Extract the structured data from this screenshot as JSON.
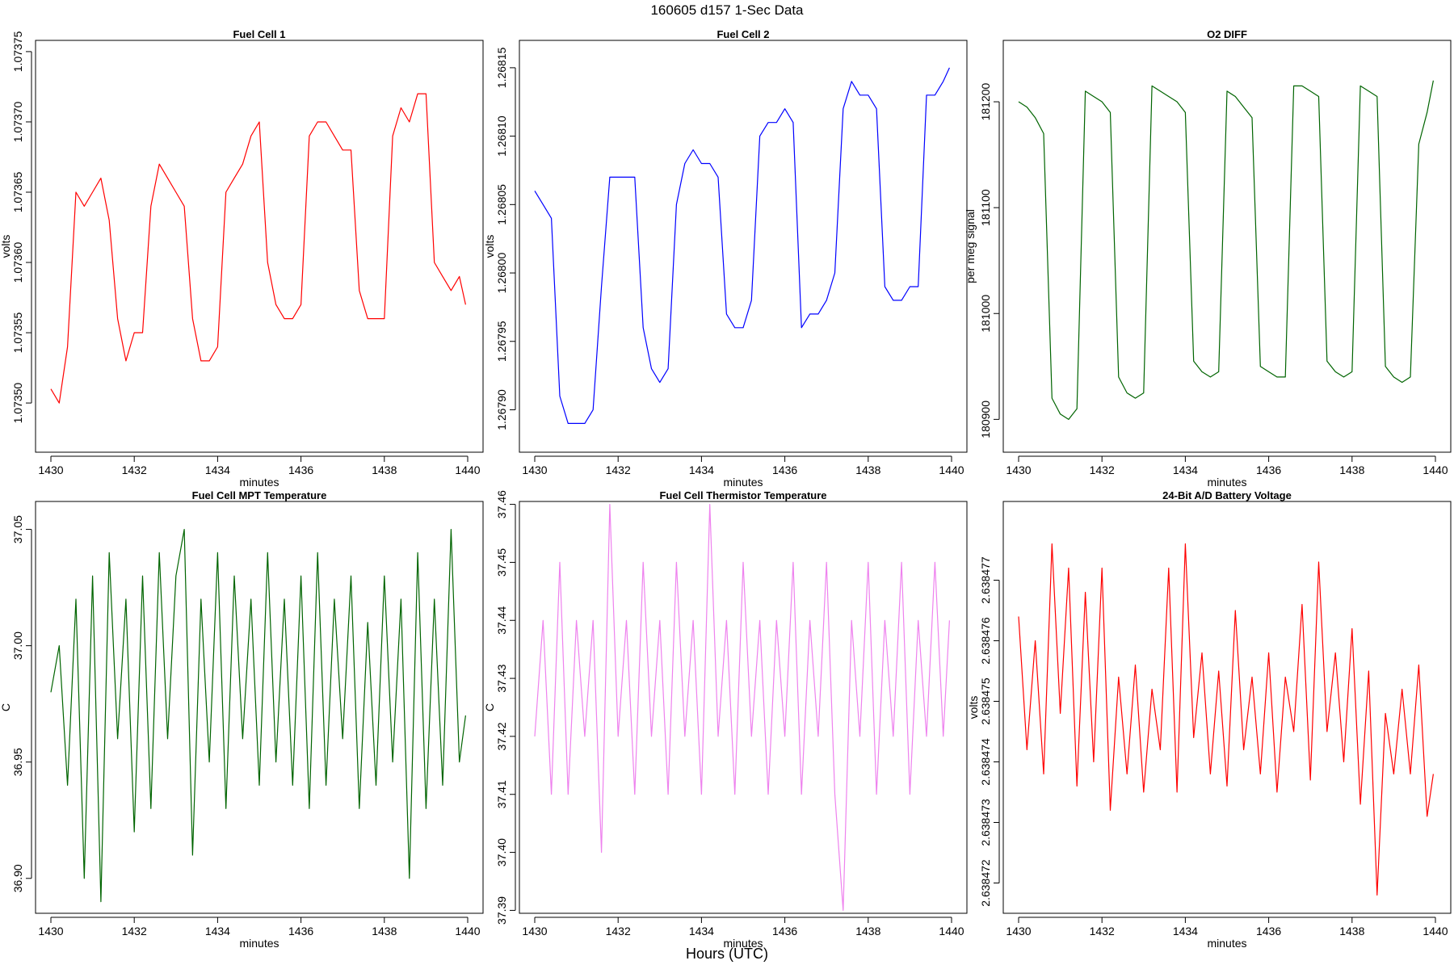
{
  "page": {
    "title": "160605   d157   1-Sec Data",
    "footer": "Hours (UTC)"
  },
  "chart_data": [
    {
      "type": "line",
      "title": "Fuel Cell 1",
      "xlabel": "minutes",
      "ylabel": "volts",
      "color": "#ff0000",
      "xlim": [
        1430,
        1440
      ],
      "ylim": [
        1.073465,
        1.073758
      ],
      "x_ticks": [
        1430,
        1432,
        1434,
        1436,
        1438,
        1440
      ],
      "x_tick_labels": [
        "1430",
        "1432",
        "1434",
        "1436",
        "1438",
        "1440"
      ],
      "y_ticks": [
        1.0735,
        1.07355,
        1.0736,
        1.07365,
        1.0737,
        1.07375
      ],
      "y_tick_labels": [
        "1.07350",
        "1.07355",
        "1.07360",
        "1.07365",
        "1.07370",
        "1.07375"
      ],
      "series": [
        {
          "x": [
            1430.0,
            1430.2,
            1430.4,
            1430.6,
            1430.8,
            1431.0,
            1431.2,
            1431.4,
            1431.6,
            1431.8,
            1432.0,
            1432.2,
            1432.4,
            1432.6,
            1432.8,
            1433.0,
            1433.2,
            1433.4,
            1433.6,
            1433.8,
            1434.0,
            1434.2,
            1434.4,
            1434.6,
            1434.8,
            1435.0,
            1435.2,
            1435.4,
            1435.6,
            1435.8,
            1436.0,
            1436.2,
            1436.4,
            1436.6,
            1436.8,
            1437.0,
            1437.2,
            1437.4,
            1437.6,
            1437.8,
            1438.0,
            1438.2,
            1438.4,
            1438.6,
            1438.8,
            1439.0,
            1439.2,
            1439.4,
            1439.6,
            1439.8,
            1439.95
          ],
          "values": [
            1.07351,
            1.0735,
            1.07354,
            1.07365,
            1.07364,
            1.07365,
            1.07366,
            1.07363,
            1.07356,
            1.07353,
            1.07355,
            1.07355,
            1.07364,
            1.07367,
            1.07366,
            1.07365,
            1.07364,
            1.07356,
            1.07353,
            1.07353,
            1.07354,
            1.07365,
            1.07366,
            1.07367,
            1.07369,
            1.0737,
            1.0736,
            1.07357,
            1.07356,
            1.07356,
            1.07357,
            1.07369,
            1.0737,
            1.0737,
            1.07369,
            1.07368,
            1.07368,
            1.07358,
            1.07356,
            1.07356,
            1.07356,
            1.07369,
            1.07371,
            1.0737,
            1.07372,
            1.07372,
            1.0736,
            1.07359,
            1.07358,
            1.07359,
            1.07357
          ]
        }
      ]
    },
    {
      "type": "line",
      "title": "Fuel Cell 2",
      "xlabel": "minutes",
      "ylabel": "volts",
      "color": "#0000ff",
      "xlim": [
        1430,
        1440
      ],
      "ylim": [
        1.267869,
        1.26817
      ],
      "x_ticks": [
        1430,
        1432,
        1434,
        1436,
        1438,
        1440
      ],
      "x_tick_labels": [
        "1430",
        "1432",
        "1434",
        "1436",
        "1438",
        "1440"
      ],
      "y_ticks": [
        1.2679,
        1.26795,
        1.268,
        1.26805,
        1.2681,
        1.26815
      ],
      "y_tick_labels": [
        "1.26790",
        "1.26795",
        "1.26800",
        "1.26805",
        "1.26810",
        "1.26815"
      ],
      "series": [
        {
          "x": [
            1430.0,
            1430.2,
            1430.4,
            1430.6,
            1430.8,
            1431.0,
            1431.2,
            1431.4,
            1431.6,
            1431.8,
            1432.0,
            1432.2,
            1432.4,
            1432.6,
            1432.8,
            1433.0,
            1433.2,
            1433.4,
            1433.6,
            1433.8,
            1434.0,
            1434.2,
            1434.4,
            1434.6,
            1434.8,
            1435.0,
            1435.2,
            1435.4,
            1435.6,
            1435.8,
            1436.0,
            1436.2,
            1436.4,
            1436.6,
            1436.8,
            1437.0,
            1437.2,
            1437.4,
            1437.6,
            1437.8,
            1438.0,
            1438.2,
            1438.4,
            1438.6,
            1438.8,
            1439.0,
            1439.2,
            1439.4,
            1439.6,
            1439.8,
            1439.95
          ],
          "values": [
            1.26806,
            1.26805,
            1.26804,
            1.26791,
            1.26789,
            1.26789,
            1.26789,
            1.2679,
            1.26799,
            1.26807,
            1.26807,
            1.26807,
            1.26807,
            1.26796,
            1.26793,
            1.26792,
            1.26793,
            1.26805,
            1.26808,
            1.26809,
            1.26808,
            1.26808,
            1.26807,
            1.26797,
            1.26796,
            1.26796,
            1.26798,
            1.2681,
            1.26811,
            1.26811,
            1.26812,
            1.26811,
            1.26796,
            1.26797,
            1.26797,
            1.26798,
            1.268,
            1.26812,
            1.26814,
            1.26813,
            1.26813,
            1.26812,
            1.26799,
            1.26798,
            1.26798,
            1.26799,
            1.26799,
            1.26813,
            1.26813,
            1.26814,
            1.26815
          ]
        }
      ]
    },
    {
      "type": "line",
      "title": "O2 DIFF",
      "xlabel": "minutes",
      "ylabel": "per meg signal",
      "color": "#006400",
      "xlim": [
        1430,
        1440
      ],
      "ylim": [
        180869,
        181258
      ],
      "x_ticks": [
        1430,
        1432,
        1434,
        1436,
        1438,
        1440
      ],
      "x_tick_labels": [
        "1430",
        "1432",
        "1434",
        "1436",
        "1438",
        "1440"
      ],
      "y_ticks": [
        180900,
        181000,
        181100,
        181200
      ],
      "y_tick_labels": [
        "180900",
        "181000",
        "181100",
        "181200"
      ],
      "series": [
        {
          "x": [
            1430.0,
            1430.2,
            1430.4,
            1430.6,
            1430.8,
            1431.0,
            1431.2,
            1431.4,
            1431.6,
            1431.8,
            1432.0,
            1432.2,
            1432.4,
            1432.6,
            1432.8,
            1433.0,
            1433.2,
            1433.4,
            1433.6,
            1433.8,
            1434.0,
            1434.2,
            1434.4,
            1434.6,
            1434.8,
            1435.0,
            1435.2,
            1435.4,
            1435.6,
            1435.8,
            1436.0,
            1436.2,
            1436.4,
            1436.6,
            1436.8,
            1437.0,
            1437.2,
            1437.4,
            1437.6,
            1437.8,
            1438.0,
            1438.2,
            1438.4,
            1438.6,
            1438.8,
            1439.0,
            1439.2,
            1439.4,
            1439.6,
            1439.8,
            1439.95
          ],
          "values": [
            181200,
            181195,
            181185,
            181170,
            180920,
            180905,
            180900,
            180910,
            181210,
            181205,
            181200,
            181190,
            180940,
            180925,
            180920,
            180925,
            181215,
            181210,
            181205,
            181200,
            181190,
            180955,
            180945,
            180940,
            180945,
            181210,
            181205,
            181195,
            181185,
            180950,
            180945,
            180940,
            180940,
            181215,
            181215,
            181210,
            181205,
            180955,
            180945,
            180940,
            180945,
            181215,
            181210,
            181205,
            180950,
            180940,
            180935,
            180940,
            181160,
            181190,
            181220
          ]
        }
      ]
    },
    {
      "type": "line",
      "title": "Fuel Cell MPT Temperature",
      "xlabel": "minutes",
      "ylabel": "C",
      "color": "#006400",
      "xlim": [
        1430,
        1440
      ],
      "ylim": [
        36.885,
        37.062
      ],
      "x_ticks": [
        1430,
        1432,
        1434,
        1436,
        1438,
        1440
      ],
      "x_tick_labels": [
        "1430",
        "1432",
        "1434",
        "1436",
        "1438",
        "1440"
      ],
      "y_ticks": [
        36.9,
        36.95,
        37.0,
        37.05
      ],
      "y_tick_labels": [
        "36.90",
        "36.95",
        "37.00",
        "37.05"
      ],
      "series": [
        {
          "x": [
            1430.0,
            1430.2,
            1430.4,
            1430.6,
            1430.8,
            1431.0,
            1431.2,
            1431.4,
            1431.6,
            1431.8,
            1432.0,
            1432.2,
            1432.4,
            1432.6,
            1432.8,
            1433.0,
            1433.2,
            1433.4,
            1433.6,
            1433.8,
            1434.0,
            1434.2,
            1434.4,
            1434.6,
            1434.8,
            1435.0,
            1435.2,
            1435.4,
            1435.6,
            1435.8,
            1436.0,
            1436.2,
            1436.4,
            1436.6,
            1436.8,
            1437.0,
            1437.2,
            1437.4,
            1437.6,
            1437.8,
            1438.0,
            1438.2,
            1438.4,
            1438.6,
            1438.8,
            1439.0,
            1439.2,
            1439.4,
            1439.6,
            1439.8,
            1439.95
          ],
          "values": [
            36.98,
            37.0,
            36.94,
            37.02,
            36.9,
            37.03,
            36.89,
            37.04,
            36.96,
            37.02,
            36.92,
            37.03,
            36.93,
            37.04,
            36.96,
            37.03,
            37.05,
            36.91,
            37.02,
            36.95,
            37.04,
            36.93,
            37.03,
            36.96,
            37.02,
            36.94,
            37.04,
            36.95,
            37.02,
            36.94,
            37.03,
            36.93,
            37.04,
            36.94,
            37.02,
            36.96,
            37.03,
            36.93,
            37.01,
            36.94,
            37.03,
            36.95,
            37.02,
            36.9,
            37.04,
            36.93,
            37.02,
            36.94,
            37.05,
            36.95,
            36.97
          ]
        }
      ]
    },
    {
      "type": "line",
      "title": "Fuel Cell Thermistor Temperature",
      "xlabel": "minutes",
      "ylabel": "C",
      "color": "#ee82ee",
      "xlim": [
        1430,
        1440
      ],
      "ylim": [
        37.3895,
        37.4605
      ],
      "x_ticks": [
        1430,
        1432,
        1434,
        1436,
        1438,
        1440
      ],
      "x_tick_labels": [
        "1430",
        "1432",
        "1434",
        "1436",
        "1438",
        "1440"
      ],
      "y_ticks": [
        37.39,
        37.4,
        37.41,
        37.42,
        37.43,
        37.44,
        37.45,
        37.46
      ],
      "y_tick_labels": [
        "37.39",
        "37.40",
        "37.41",
        "37.42",
        "37.43",
        "37.44",
        "37.45",
        "37.46"
      ],
      "series": [
        {
          "x": [
            1430.0,
            1430.2,
            1430.4,
            1430.6,
            1430.8,
            1431.0,
            1431.2,
            1431.4,
            1431.6,
            1431.8,
            1432.0,
            1432.2,
            1432.4,
            1432.6,
            1432.8,
            1433.0,
            1433.2,
            1433.4,
            1433.6,
            1433.8,
            1434.0,
            1434.2,
            1434.4,
            1434.6,
            1434.8,
            1435.0,
            1435.2,
            1435.4,
            1435.6,
            1435.8,
            1436.0,
            1436.2,
            1436.4,
            1436.6,
            1436.8,
            1437.0,
            1437.2,
            1437.4,
            1437.6,
            1437.8,
            1438.0,
            1438.2,
            1438.4,
            1438.6,
            1438.8,
            1439.0,
            1439.2,
            1439.4,
            1439.6,
            1439.8,
            1439.95
          ],
          "values": [
            37.42,
            37.44,
            37.41,
            37.45,
            37.41,
            37.44,
            37.42,
            37.44,
            37.4,
            37.46,
            37.42,
            37.44,
            37.41,
            37.45,
            37.42,
            37.44,
            37.41,
            37.45,
            37.42,
            37.44,
            37.41,
            37.46,
            37.42,
            37.44,
            37.41,
            37.45,
            37.42,
            37.44,
            37.41,
            37.44,
            37.42,
            37.45,
            37.41,
            37.44,
            37.42,
            37.45,
            37.41,
            37.39,
            37.44,
            37.42,
            37.45,
            37.41,
            37.44,
            37.42,
            37.45,
            37.41,
            37.44,
            37.42,
            37.45,
            37.42,
            37.44
          ]
        }
      ]
    },
    {
      "type": "line",
      "title": "24-Bit A/D Battery Voltage",
      "xlabel": "minutes",
      "ylabel": "volts",
      "color": "#ff0000",
      "xlim": [
        1430,
        1440
      ],
      "ylim": [
        2.6384715,
        2.6384783
      ],
      "x_ticks": [
        1430,
        1432,
        1434,
        1436,
        1438,
        1440
      ],
      "x_tick_labels": [
        "1430",
        "1432",
        "1434",
        "1436",
        "1438",
        "1440"
      ],
      "y_ticks": [
        2.638472,
        2.638473,
        2.638474,
        2.638475,
        2.638476,
        2.638477
      ],
      "y_tick_labels": [
        "2.638472",
        "2.638473",
        "2.638474",
        "2.638475",
        "2.638476",
        "2.638477"
      ],
      "series": [
        {
          "x": [
            1430.0,
            1430.2,
            1430.4,
            1430.6,
            1430.8,
            1431.0,
            1431.2,
            1431.4,
            1431.6,
            1431.8,
            1432.0,
            1432.2,
            1432.4,
            1432.6,
            1432.8,
            1433.0,
            1433.2,
            1433.4,
            1433.6,
            1433.8,
            1434.0,
            1434.2,
            1434.4,
            1434.6,
            1434.8,
            1435.0,
            1435.2,
            1435.4,
            1435.6,
            1435.8,
            1436.0,
            1436.2,
            1436.4,
            1436.6,
            1436.8,
            1437.0,
            1437.2,
            1437.4,
            1437.6,
            1437.8,
            1438.0,
            1438.2,
            1438.4,
            1438.6,
            1438.8,
            1439.0,
            1439.2,
            1439.4,
            1439.6,
            1439.8,
            1439.95
          ],
          "values": [
            2.6384764,
            2.6384742,
            2.638476,
            2.6384738,
            2.6384776,
            2.6384748,
            2.6384772,
            2.6384736,
            2.6384768,
            2.638474,
            2.6384772,
            2.6384732,
            2.6384754,
            2.6384738,
            2.6384756,
            2.6384735,
            2.6384752,
            2.6384742,
            2.6384772,
            2.6384735,
            2.6384776,
            2.6384744,
            2.6384758,
            2.6384738,
            2.6384755,
            2.6384736,
            2.6384765,
            2.6384742,
            2.6384754,
            2.6384738,
            2.6384758,
            2.6384735,
            2.6384754,
            2.6384745,
            2.6384766,
            2.6384737,
            2.6384773,
            2.6384745,
            2.6384758,
            2.638474,
            2.6384762,
            2.6384733,
            2.6384755,
            2.6384718,
            2.6384748,
            2.6384738,
            2.6384752,
            2.6384738,
            2.6384756,
            2.6384731,
            2.6384738
          ]
        }
      ]
    }
  ]
}
